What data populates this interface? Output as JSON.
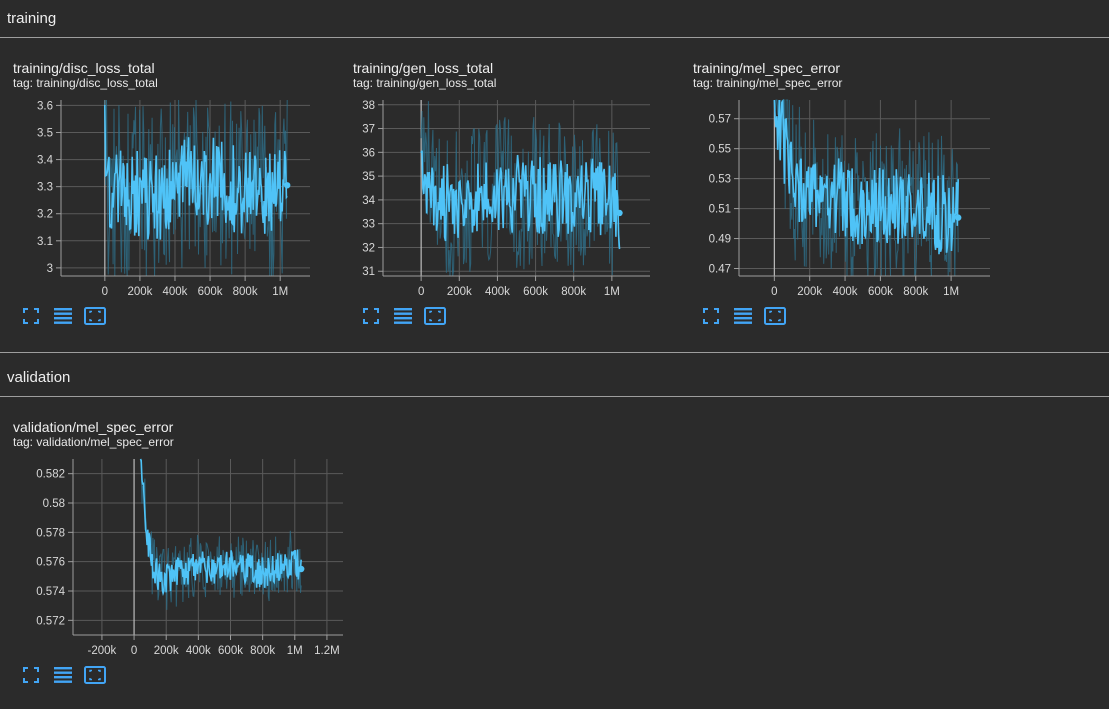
{
  "sections": {
    "training": {
      "title": "training"
    },
    "validation": {
      "title": "validation"
    }
  },
  "cards": [
    {
      "title": "training/disc_loss_total",
      "tag": "tag: training/disc_loss_total",
      "chart_data": {
        "type": "line",
        "x_ticks": [
          "0",
          "200k",
          "400k",
          "600k",
          "800k",
          "1M"
        ],
        "x_tick_values": [
          0,
          200000,
          400000,
          600000,
          800000,
          1000000
        ],
        "y_ticks": [
          "3",
          "3.1",
          "3.2",
          "3.3",
          "3.4",
          "3.5",
          "3.6"
        ],
        "y_tick_values": [
          3.0,
          3.1,
          3.2,
          3.3,
          3.4,
          3.5,
          3.6
        ],
        "xlim": [
          -250000,
          1170000
        ],
        "ylim": [
          2.97,
          3.62
        ],
        "grid": true,
        "x_end": 1040000,
        "last_value": 3.305,
        "smoothed": [
          [
            0,
            3.6
          ],
          [
            15000,
            3.25
          ],
          [
            100000,
            3.28
          ],
          [
            200000,
            3.27
          ],
          [
            300000,
            3.26
          ],
          [
            400000,
            3.3
          ],
          [
            500000,
            3.33
          ],
          [
            600000,
            3.32
          ],
          [
            700000,
            3.3
          ],
          [
            800000,
            3.29
          ],
          [
            900000,
            3.27
          ],
          [
            1000000,
            3.27
          ],
          [
            1040000,
            3.305
          ]
        ],
        "spread": 0.3
      }
    },
    {
      "title": "training/gen_loss_total",
      "tag": "tag: training/gen_loss_total",
      "chart_data": {
        "type": "line",
        "x_ticks": [
          "0",
          "200k",
          "400k",
          "600k",
          "800k",
          "1M"
        ],
        "x_tick_values": [
          0,
          200000,
          400000,
          600000,
          800000,
          1000000
        ],
        "y_ticks": [
          "31",
          "32",
          "33",
          "34",
          "35",
          "36",
          "37",
          "38"
        ],
        "y_tick_values": [
          31,
          32,
          33,
          34,
          35,
          36,
          37,
          38
        ],
        "xlim": [
          -200000,
          1200000
        ],
        "ylim": [
          30.8,
          38.2
        ],
        "grid": true,
        "x_end": 1040000,
        "last_value": 33.45,
        "smoothed": [
          [
            0,
            35.5
          ],
          [
            100000,
            33.8
          ],
          [
            200000,
            34.0
          ],
          [
            300000,
            34.2
          ],
          [
            400000,
            34.1
          ],
          [
            500000,
            34.3
          ],
          [
            600000,
            34.2
          ],
          [
            700000,
            34.0
          ],
          [
            800000,
            34.2
          ],
          [
            900000,
            34.1
          ],
          [
            1000000,
            34.0
          ],
          [
            1040000,
            33.45
          ]
        ],
        "spread": 3.0
      }
    },
    {
      "title": "training/mel_spec_error",
      "tag": "tag: training/mel_spec_error",
      "chart_data": {
        "type": "line",
        "x_ticks": [
          "0",
          "200k",
          "400k",
          "600k",
          "800k",
          "1M"
        ],
        "x_tick_values": [
          0,
          200000,
          400000,
          600000,
          800000,
          1000000
        ],
        "y_ticks": [
          "0.47",
          "0.49",
          "0.51",
          "0.53",
          "0.55",
          "0.57"
        ],
        "y_tick_values": [
          0.47,
          0.49,
          0.51,
          0.53,
          0.55,
          0.57
        ],
        "xlim": [
          -200000,
          1220000
        ],
        "ylim": [
          0.465,
          0.5825
        ],
        "grid": true,
        "x_end": 1040000,
        "last_value": 0.504,
        "smoothed": [
          [
            0,
            0.58
          ],
          [
            50000,
            0.555
          ],
          [
            100000,
            0.53
          ],
          [
            200000,
            0.52
          ],
          [
            300000,
            0.518
          ],
          [
            400000,
            0.515
          ],
          [
            500000,
            0.513
          ],
          [
            600000,
            0.512
          ],
          [
            700000,
            0.51
          ],
          [
            800000,
            0.51
          ],
          [
            900000,
            0.508
          ],
          [
            1000000,
            0.505
          ],
          [
            1040000,
            0.504
          ]
        ],
        "spread": 0.05
      }
    },
    {
      "title": "validation/mel_spec_error",
      "tag": "tag: validation/mel_spec_error",
      "chart_data": {
        "type": "line",
        "x_ticks": [
          "-200k",
          "0",
          "200k",
          "400k",
          "600k",
          "800k",
          "1M",
          "1.2M"
        ],
        "x_tick_values": [
          -200000,
          0,
          200000,
          400000,
          600000,
          800000,
          1000000,
          1200000
        ],
        "y_ticks": [
          "0.572",
          "0.574",
          "0.576",
          "0.578",
          "0.58",
          "0.582"
        ],
        "y_tick_values": [
          0.572,
          0.574,
          0.576,
          0.578,
          0.58,
          0.582
        ],
        "xlim": [
          -380000,
          1300000
        ],
        "ylim": [
          0.571,
          0.583
        ],
        "grid": true,
        "x_end": 1040000,
        "last_value": 0.5755,
        "smoothed": [
          [
            40000,
            0.5828
          ],
          [
            60000,
            0.581
          ],
          [
            80000,
            0.578
          ],
          [
            100000,
            0.5765
          ],
          [
            120000,
            0.5755
          ],
          [
            150000,
            0.575
          ],
          [
            200000,
            0.5748
          ],
          [
            300000,
            0.5753
          ],
          [
            400000,
            0.5757
          ],
          [
            500000,
            0.5756
          ],
          [
            600000,
            0.5757
          ],
          [
            700000,
            0.5755
          ],
          [
            800000,
            0.5752
          ],
          [
            900000,
            0.5758
          ],
          [
            1000000,
            0.576
          ],
          [
            1040000,
            0.5755
          ]
        ],
        "spread": 0.002
      }
    }
  ],
  "toolbar": {
    "icons": [
      "fullscreen-icon",
      "toggle-log-scale-icon",
      "fit-domain-icon"
    ]
  },
  "colors": {
    "line": "#4fc3f7",
    "raw": "#2e6f8a",
    "background": "#2b2b2b",
    "grid": "#5a5a5a",
    "axis": "#9e9e9e",
    "toolbar": "#42a5f5"
  }
}
